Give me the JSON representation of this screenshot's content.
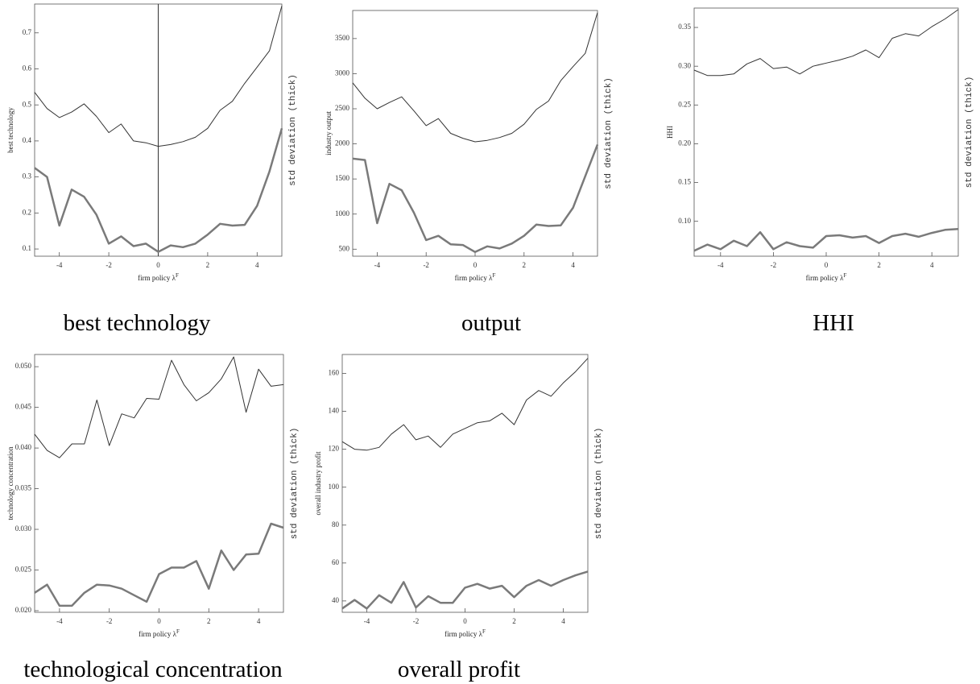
{
  "chart_data": [
    {
      "type": "line",
      "ylabel": "best technology",
      "xlabel": "firm policy λ",
      "xlabel_sup": "F",
      "right_label": "std deviation (thick)",
      "caption": "best technology",
      "origin_axis": true,
      "x": [
        -5,
        -4.5,
        -4,
        -3.5,
        -3,
        -2.5,
        -2,
        -1.5,
        -1,
        -0.5,
        0,
        0.5,
        1,
        1.5,
        2,
        2.5,
        3,
        3.5,
        4,
        4.5,
        5
      ],
      "xlim": [
        -5,
        5
      ],
      "xticks": [
        -4,
        -2,
        0,
        2,
        4
      ],
      "ylim": [
        0.08,
        0.78
      ],
      "yticks": [
        0.1,
        0.2,
        0.3,
        0.4,
        0.5,
        0.6,
        0.7
      ],
      "series": [
        {
          "color": "#333333",
          "width": 1,
          "values": [
            0.535,
            0.49,
            0.465,
            0.48,
            0.503,
            0.468,
            0.423,
            0.447,
            0.4,
            0.395,
            0.385,
            0.39,
            0.398,
            0.41,
            0.435,
            0.485,
            0.51,
            0.56,
            0.605,
            0.65,
            0.775
          ]
        },
        {
          "color": "#7a7a7a",
          "width": 2.5,
          "values": [
            0.325,
            0.3,
            0.165,
            0.265,
            0.245,
            0.195,
            0.115,
            0.135,
            0.108,
            0.115,
            0.092,
            0.11,
            0.105,
            0.115,
            0.14,
            0.17,
            0.165,
            0.167,
            0.22,
            0.315,
            0.435
          ]
        }
      ]
    },
    {
      "type": "line",
      "ylabel": "industry output",
      "xlabel": "firm policy λ",
      "xlabel_sup": "F",
      "right_label": "std deviation (thick)",
      "caption": "output",
      "origin_axis": false,
      "x": [
        -5,
        -4.5,
        -4,
        -3.5,
        -3,
        -2.5,
        -2,
        -1.5,
        -1,
        -0.5,
        0,
        0.5,
        1,
        1.5,
        2,
        2.5,
        3,
        3.5,
        4,
        4.5,
        5
      ],
      "xlim": [
        -5,
        5
      ],
      "xticks": [
        -4,
        -2,
        0,
        2,
        4
      ],
      "ylim": [
        400,
        3900
      ],
      "yticks": [
        500,
        1000,
        1500,
        2000,
        2500,
        3000,
        3500
      ],
      "series": [
        {
          "color": "#333333",
          "width": 1,
          "values": [
            2870,
            2650,
            2500,
            2590,
            2670,
            2470,
            2260,
            2360,
            2150,
            2080,
            2030,
            2050,
            2090,
            2150,
            2280,
            2490,
            2610,
            2900,
            3100,
            3290,
            3870
          ]
        },
        {
          "color": "#7a7a7a",
          "width": 2.5,
          "values": [
            1790,
            1770,
            870,
            1430,
            1340,
            1020,
            630,
            690,
            570,
            560,
            460,
            540,
            510,
            580,
            690,
            850,
            830,
            840,
            1090,
            1540,
            1990
          ]
        }
      ]
    },
    {
      "type": "line",
      "ylabel": "HHI",
      "xlabel": "firm policy λ",
      "xlabel_sup": "F",
      "right_label": "std deviation (thick)",
      "caption": "HHI",
      "origin_axis": false,
      "x": [
        -5,
        -4.5,
        -4,
        -3.5,
        -3,
        -2.5,
        -2,
        -1.5,
        -1,
        -0.5,
        0,
        0.5,
        1,
        1.5,
        2,
        2.5,
        3,
        3.5,
        4,
        4.5,
        5
      ],
      "xlim": [
        -5,
        5
      ],
      "xticks": [
        -4,
        -2,
        0,
        2,
        4
      ],
      "ylim": [
        0.055,
        0.375
      ],
      "yticks": [
        {
          "value": 0.1,
          "label": "0.10"
        },
        0.15,
        {
          "value": 0.2,
          "label": "0.20"
        },
        0.25,
        {
          "value": 0.3,
          "label": "0.30"
        },
        0.35
      ],
      "series": [
        {
          "color": "#333333",
          "width": 1,
          "values": [
            0.295,
            0.288,
            0.288,
            0.29,
            0.303,
            0.31,
            0.297,
            0.299,
            0.29,
            0.3,
            0.304,
            0.308,
            0.313,
            0.321,
            0.311,
            0.336,
            0.342,
            0.339,
            0.351,
            0.361,
            0.373
          ]
        },
        {
          "color": "#7a7a7a",
          "width": 2.5,
          "values": [
            0.062,
            0.07,
            0.064,
            0.075,
            0.068,
            0.086,
            0.064,
            0.073,
            0.068,
            0.066,
            0.081,
            0.082,
            0.079,
            0.081,
            0.072,
            0.081,
            0.084,
            0.08,
            0.085,
            0.089,
            0.09
          ]
        }
      ]
    },
    {
      "type": "line",
      "ylabel": "technology concentration",
      "xlabel": "firm policy λ",
      "xlabel_sup": "F",
      "right_label": "std deviation (thick)",
      "caption": "technological concentration",
      "origin_axis": false,
      "x": [
        -5,
        -4.5,
        -4,
        -3.5,
        -3,
        -2.5,
        -2,
        -1.5,
        -1,
        -0.5,
        0,
        0.5,
        1,
        1.5,
        2,
        2.5,
        3,
        3.5,
        4,
        4.5,
        5
      ],
      "xlim": [
        -5,
        5
      ],
      "xticks": [
        -4,
        -2,
        0,
        2,
        4
      ],
      "ylim": [
        0.0198,
        0.0515
      ],
      "yticks": [
        {
          "value": 0.02,
          "label": "0.020"
        },
        0.025,
        {
          "value": 0.03,
          "label": "0.030"
        },
        0.035,
        {
          "value": 0.04,
          "label": "0.040"
        },
        0.045,
        {
          "value": 0.05,
          "label": "0.050"
        }
      ],
      "series": [
        {
          "color": "#333333",
          "width": 1,
          "values": [
            0.0417,
            0.0397,
            0.0388,
            0.0405,
            0.0405,
            0.0459,
            0.0403,
            0.0442,
            0.0437,
            0.0461,
            0.046,
            0.0508,
            0.0478,
            0.0458,
            0.0468,
            0.0485,
            0.0512,
            0.0444,
            0.0497,
            0.0476,
            0.0478
          ]
        },
        {
          "color": "#7a7a7a",
          "width": 2.5,
          "values": [
            0.0222,
            0.0232,
            0.0206,
            0.0206,
            0.0222,
            0.0232,
            0.0231,
            0.0227,
            0.0219,
            0.0211,
            0.0245,
            0.0253,
            0.0253,
            0.0261,
            0.0227,
            0.0274,
            0.025,
            0.0269,
            0.027,
            0.0307,
            0.0302
          ]
        }
      ]
    },
    {
      "type": "line",
      "ylabel": "overall industry profit",
      "xlabel": "firm policy λ",
      "xlabel_sup": "F",
      "right_label": "std deviation (thick)",
      "caption": "overall profit",
      "origin_axis": false,
      "x": [
        -5,
        -4.5,
        -4,
        -3.5,
        -3,
        -2.5,
        -2,
        -1.5,
        -1,
        -0.5,
        0,
        0.5,
        1,
        1.5,
        2,
        2.5,
        3,
        3.5,
        4,
        4.5,
        5
      ],
      "xlim": [
        -5,
        5
      ],
      "xticks": [
        -4,
        -2,
        0,
        2,
        4
      ],
      "ylim": [
        34,
        170
      ],
      "yticks": [
        40,
        60,
        80,
        100,
        120,
        140,
        160
      ],
      "series": [
        {
          "color": "#333333",
          "width": 1,
          "values": [
            124,
            120,
            119.5,
            121,
            128,
            133,
            125,
            127,
            121,
            128,
            131,
            134,
            135,
            139,
            133,
            146,
            151,
            148,
            155,
            161,
            168
          ]
        },
        {
          "color": "#7a7a7a",
          "width": 2.5,
          "values": [
            36,
            40.5,
            36,
            43,
            39,
            50,
            36.5,
            42.5,
            39,
            39,
            47,
            49,
            46.5,
            48,
            42,
            48,
            51,
            48,
            51,
            53.5,
            55.5
          ]
        }
      ]
    }
  ]
}
